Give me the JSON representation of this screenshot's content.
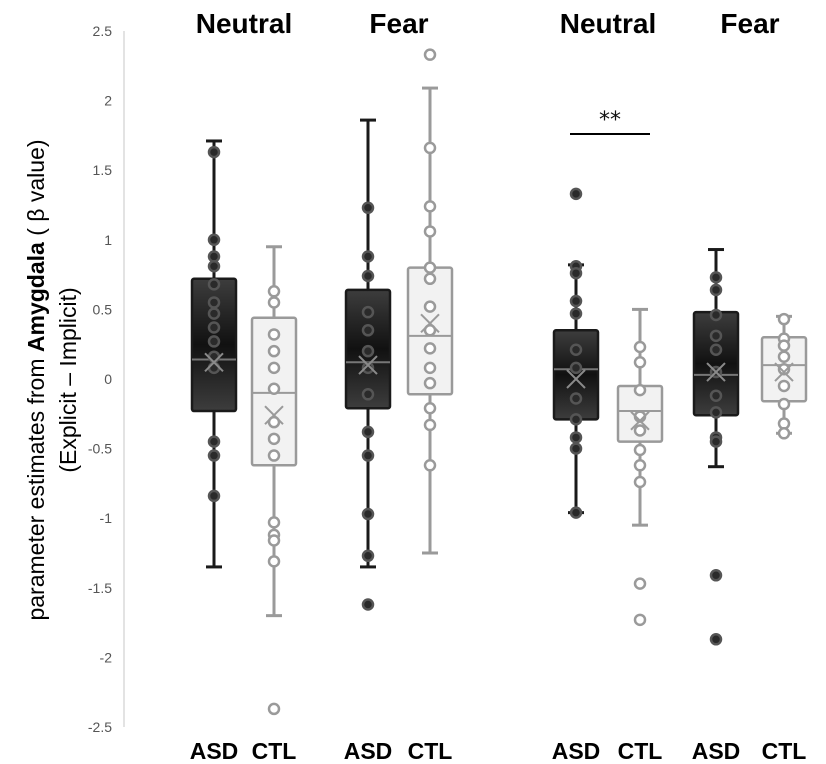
{
  "chart_data": {
    "type": "boxplot",
    "ylabel_parts": [
      "parameter estimates from ",
      "Amygdala",
      " ( β value)"
    ],
    "ylabel_line2": "(Explicit – Implicit)",
    "ylim": [
      -2.5,
      2.5
    ],
    "yticks": [
      "2.5",
      "2",
      "1.5",
      "1",
      "0.5",
      "0",
      "-0.5",
      "-1",
      "-1.5",
      "-2",
      "-2.5"
    ],
    "grid": false,
    "colors": {
      "ASD": "#1a1a1a",
      "CTL": "#9a9a9a"
    },
    "significance": [
      {
        "panel": 2,
        "label": "**",
        "between": [
          "ASD",
          "CTL"
        ]
      }
    ],
    "panels": [
      {
        "title": "Neutral",
        "groups": [
          {
            "label": "ASD",
            "min": -1.35,
            "q1": -0.23,
            "median": 0.14,
            "q3": 0.72,
            "max": 1.71,
            "mean": 0.12,
            "points": [
              1.63,
              1.0,
              0.88,
              0.81,
              0.68,
              0.55,
              0.47,
              0.37,
              0.27,
              0.16,
              0.08,
              -0.45,
              -0.55,
              -0.84
            ]
          },
          {
            "label": "CTL",
            "min": -1.7,
            "q1": -0.62,
            "median": -0.1,
            "q3": 0.44,
            "max": 0.95,
            "mean": -0.26,
            "points": [
              0.63,
              0.55,
              0.32,
              0.2,
              0.08,
              -0.07,
              -0.31,
              -0.43,
              -0.55,
              -1.03,
              -1.12,
              -1.16,
              -1.31,
              -2.37
            ]
          }
        ]
      },
      {
        "title": "Fear",
        "groups": [
          {
            "label": "ASD",
            "min": -1.35,
            "q1": -0.21,
            "median": 0.12,
            "q3": 0.64,
            "max": 1.86,
            "mean": 0.1,
            "points": [
              1.23,
              0.88,
              0.74,
              0.48,
              0.35,
              0.2,
              0.08,
              -0.11,
              -0.38,
              -0.55,
              -0.97,
              -1.27,
              -1.62
            ]
          },
          {
            "label": "CTL",
            "min": -1.25,
            "q1": -0.11,
            "median": 0.31,
            "q3": 0.8,
            "max": 2.09,
            "mean": 0.4,
            "points": [
              2.33,
              1.66,
              1.24,
              1.06,
              0.8,
              0.72,
              0.52,
              0.35,
              0.22,
              0.08,
              -0.03,
              -0.21,
              -0.33,
              -0.62
            ]
          }
        ]
      },
      {
        "title": "Neutral",
        "groups": [
          {
            "label": "ASD",
            "min": -0.96,
            "q1": -0.29,
            "median": 0.07,
            "q3": 0.35,
            "max": 0.82,
            "mean": 0.0,
            "points": [
              1.33,
              0.81,
              0.76,
              0.56,
              0.47,
              0.21,
              0.08,
              -0.14,
              -0.29,
              -0.42,
              -0.5,
              -0.96
            ]
          },
          {
            "label": "CTL",
            "min": -1.05,
            "q1": -0.45,
            "median": -0.23,
            "q3": -0.05,
            "max": 0.5,
            "mean": -0.3,
            "points": [
              0.23,
              0.12,
              -0.08,
              -0.27,
              -0.37,
              -0.51,
              -0.62,
              -0.74,
              -1.47,
              -1.73
            ]
          }
        ]
      },
      {
        "title": "Fear",
        "groups": [
          {
            "label": "ASD",
            "min": -0.63,
            "q1": -0.26,
            "median": 0.03,
            "q3": 0.48,
            "max": 0.93,
            "mean": 0.05,
            "points": [
              0.73,
              0.64,
              0.46,
              0.31,
              0.21,
              0.05,
              -0.12,
              -0.24,
              -0.42,
              -0.45,
              -1.41,
              -1.87
            ]
          },
          {
            "label": "CTL",
            "min": -0.39,
            "q1": -0.16,
            "median": 0.1,
            "q3": 0.3,
            "max": 0.45,
            "mean": 0.05,
            "points": [
              0.43,
              0.29,
              0.24,
              0.16,
              0.07,
              -0.05,
              -0.18,
              -0.32,
              -0.39
            ]
          }
        ]
      }
    ]
  }
}
